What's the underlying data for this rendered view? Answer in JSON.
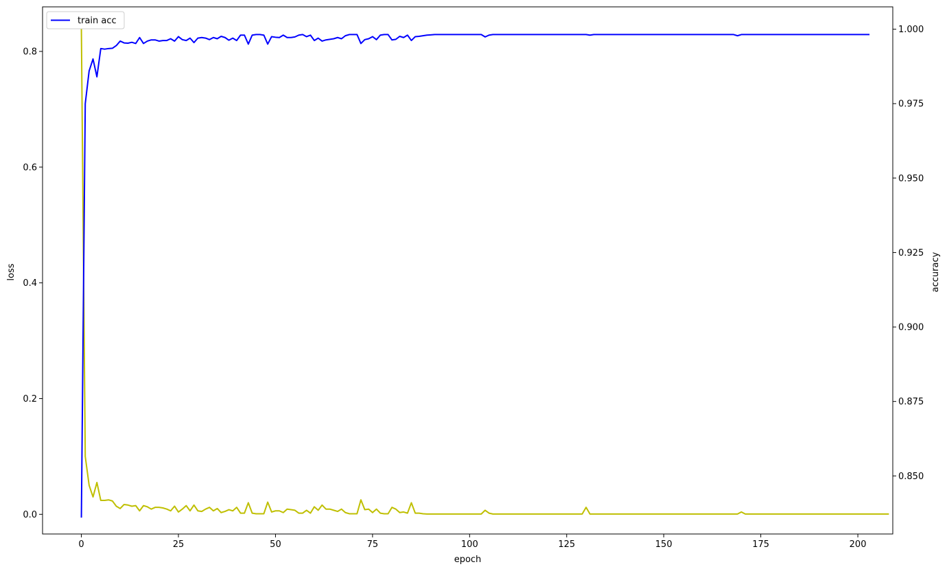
{
  "chart_data": {
    "type": "line",
    "title": "",
    "xlabel": "epoch",
    "ylabel_left": "loss",
    "ylabel_right": "accuracy",
    "xlim": [
      -10,
      209
    ],
    "ylim_left": [
      -0.034,
      0.877
    ],
    "ylim_right": [
      0.8305,
      1.0075
    ],
    "x_ticks": [
      0,
      25,
      50,
      75,
      100,
      125,
      150,
      175,
      200
    ],
    "y_ticks_left": [
      0.0,
      0.2,
      0.4,
      0.6,
      0.8
    ],
    "y_ticks_left_labels": [
      "0.0",
      "0.2",
      "0.4",
      "0.6",
      "0.8"
    ],
    "y_ticks_right": [
      0.85,
      0.875,
      0.9,
      0.925,
      0.95,
      0.975,
      1.0
    ],
    "y_ticks_right_labels": [
      "0.850",
      "0.875",
      "0.900",
      "0.925",
      "0.950",
      "0.975",
      "1.000"
    ],
    "legend": {
      "position": "upper-left",
      "entries": [
        {
          "label": "train acc",
          "color": "#0000ff"
        }
      ]
    },
    "series": [
      {
        "name": "train acc",
        "axis": "right",
        "color": "#0000ff",
        "x_start": 0,
        "x_step": 1,
        "values": [
          0.836,
          0.975,
          0.986,
          0.99,
          0.984,
          0.9935,
          0.9933,
          0.9935,
          0.9936,
          0.9945,
          0.996,
          0.9954,
          0.9953,
          0.9956,
          0.9952,
          0.9972,
          0.9952,
          0.996,
          0.9964,
          0.9964,
          0.996,
          0.9962,
          0.9962,
          0.9968,
          0.996,
          0.9975,
          0.9965,
          0.9962,
          0.997,
          0.9955,
          0.997,
          0.9972,
          0.997,
          0.9965,
          0.9972,
          0.9968,
          0.9976,
          0.9972,
          0.9963,
          0.997,
          0.9962,
          0.998,
          0.998,
          0.995,
          0.998,
          0.9982,
          0.9982,
          0.998,
          0.995,
          0.9975,
          0.9973,
          0.9972,
          0.998,
          0.9972,
          0.9972,
          0.9974,
          0.998,
          0.9982,
          0.9975,
          0.998,
          0.9962,
          0.997,
          0.996,
          0.9964,
          0.9966,
          0.9968,
          0.9972,
          0.9968,
          0.9978,
          0.9982,
          0.9982,
          0.9982,
          0.9952,
          0.9965,
          0.9968,
          0.9975,
          0.9965,
          0.998,
          0.9982,
          0.9982,
          0.9964,
          0.9966,
          0.9976,
          0.9972,
          0.998,
          0.9962,
          0.9975,
          0.9976,
          0.9978,
          0.998,
          0.9981,
          0.9982,
          0.9982,
          0.9982,
          0.9982,
          0.9982,
          0.9982,
          0.9982,
          0.9982,
          0.9982,
          0.9982,
          0.9982,
          0.9982,
          0.9982,
          0.9974,
          0.998,
          0.9982,
          0.9982,
          0.9982,
          0.9982,
          0.9982,
          0.9982,
          0.9982,
          0.9982,
          0.9982,
          0.9982,
          0.9982,
          0.9982,
          0.9982,
          0.9982,
          0.9982,
          0.9982,
          0.9982,
          0.9982,
          0.9982,
          0.9982,
          0.9982,
          0.9982,
          0.9982,
          0.9982,
          0.9982,
          0.998,
          0.9982,
          0.9982,
          0.9982,
          0.9982,
          0.9982,
          0.9982,
          0.9982,
          0.9982,
          0.9982,
          0.9982,
          0.9982,
          0.9982,
          0.9982,
          0.9982,
          0.9982,
          0.9982,
          0.9982,
          0.9982,
          0.9982,
          0.9982,
          0.9982,
          0.9982,
          0.9982,
          0.9982,
          0.9982,
          0.9982,
          0.9982,
          0.9982,
          0.9982,
          0.9982,
          0.9982,
          0.9982,
          0.9982,
          0.9982,
          0.9982,
          0.9982,
          0.9982,
          0.9978,
          0.9982,
          0.9982,
          0.9982,
          0.9982,
          0.9982,
          0.9982,
          0.9982,
          0.9982,
          0.9982,
          0.9982,
          0.9982,
          0.9982,
          0.9982,
          0.9982,
          0.9982,
          0.9982,
          0.9982,
          0.9982,
          0.9982,
          0.9982,
          0.9982,
          0.9982,
          0.9982,
          0.9982,
          0.9982,
          0.9982,
          0.9982,
          0.9982,
          0.9982,
          0.9982,
          0.9982,
          0.9982,
          0.9982,
          0.9982
        ]
      },
      {
        "axis": "left",
        "color": "#bfbf00",
        "x_start": 0,
        "x_step": 1,
        "values": [
          0.84,
          0.1,
          0.05,
          0.03,
          0.055,
          0.024,
          0.024,
          0.025,
          0.023,
          0.014,
          0.01,
          0.017,
          0.016,
          0.014,
          0.015,
          0.006,
          0.015,
          0.013,
          0.009,
          0.012,
          0.012,
          0.011,
          0.009,
          0.006,
          0.014,
          0.004,
          0.009,
          0.015,
          0.006,
          0.016,
          0.006,
          0.005,
          0.009,
          0.012,
          0.006,
          0.01,
          0.003,
          0.005,
          0.008,
          0.006,
          0.012,
          0.002,
          0.002,
          0.02,
          0.002,
          0.001,
          0.001,
          0.001,
          0.021,
          0.004,
          0.006,
          0.006,
          0.003,
          0.009,
          0.008,
          0.007,
          0.002,
          0.002,
          0.007,
          0.002,
          0.013,
          0.007,
          0.016,
          0.009,
          0.009,
          0.007,
          0.005,
          0.009,
          0.003,
          0.001,
          0.001,
          0.001,
          0.025,
          0.008,
          0.009,
          0.003,
          0.009,
          0.002,
          0.001,
          0.001,
          0.012,
          0.009,
          0.003,
          0.004,
          0.002,
          0.02,
          0.002,
          0.002,
          0.001,
          0.0005,
          0.0005,
          0.0005,
          0.0005,
          0.0005,
          0.0005,
          0.0005,
          0.0005,
          0.0005,
          0.0005,
          0.0005,
          0.0005,
          0.0005,
          0.0005,
          0.0005,
          0.007,
          0.002,
          0.0005,
          0.0005,
          0.0005,
          0.0005,
          0.0005,
          0.0005,
          0.0005,
          0.0005,
          0.0005,
          0.0005,
          0.0005,
          0.0005,
          0.0005,
          0.0005,
          0.0005,
          0.0005,
          0.0005,
          0.0005,
          0.0005,
          0.0005,
          0.0005,
          0.0005,
          0.0005,
          0.0005,
          0.012,
          0.0005,
          0.0005,
          0.0005,
          0.0005,
          0.0005,
          0.0005,
          0.0005,
          0.0005,
          0.0005,
          0.0005,
          0.0005,
          0.0005,
          0.0005,
          0.0005,
          0.0005,
          0.0005,
          0.0005,
          0.0005,
          0.0005,
          0.0005,
          0.0005,
          0.0005,
          0.0005,
          0.0005,
          0.0005,
          0.0005,
          0.0005,
          0.0005,
          0.0005,
          0.0005,
          0.0005,
          0.0005,
          0.0005,
          0.0005,
          0.0005,
          0.0005,
          0.0005,
          0.0005,
          0.0005,
          0.004,
          0.0005,
          0.0005,
          0.0005,
          0.0005,
          0.0005,
          0.0005,
          0.0005,
          0.0005,
          0.0005,
          0.0005,
          0.0005,
          0.0005,
          0.0005,
          0.0005,
          0.0005,
          0.0005,
          0.0005,
          0.0005,
          0.0005,
          0.0005,
          0.0005,
          0.0005,
          0.0005,
          0.0005,
          0.0005,
          0.0005,
          0.0005,
          0.0005,
          0.0005,
          0.0005,
          0.0005,
          0.0005,
          0.0005,
          0.0005,
          0.0005,
          0.0005,
          0.0005,
          0.0005
        ]
      }
    ]
  }
}
